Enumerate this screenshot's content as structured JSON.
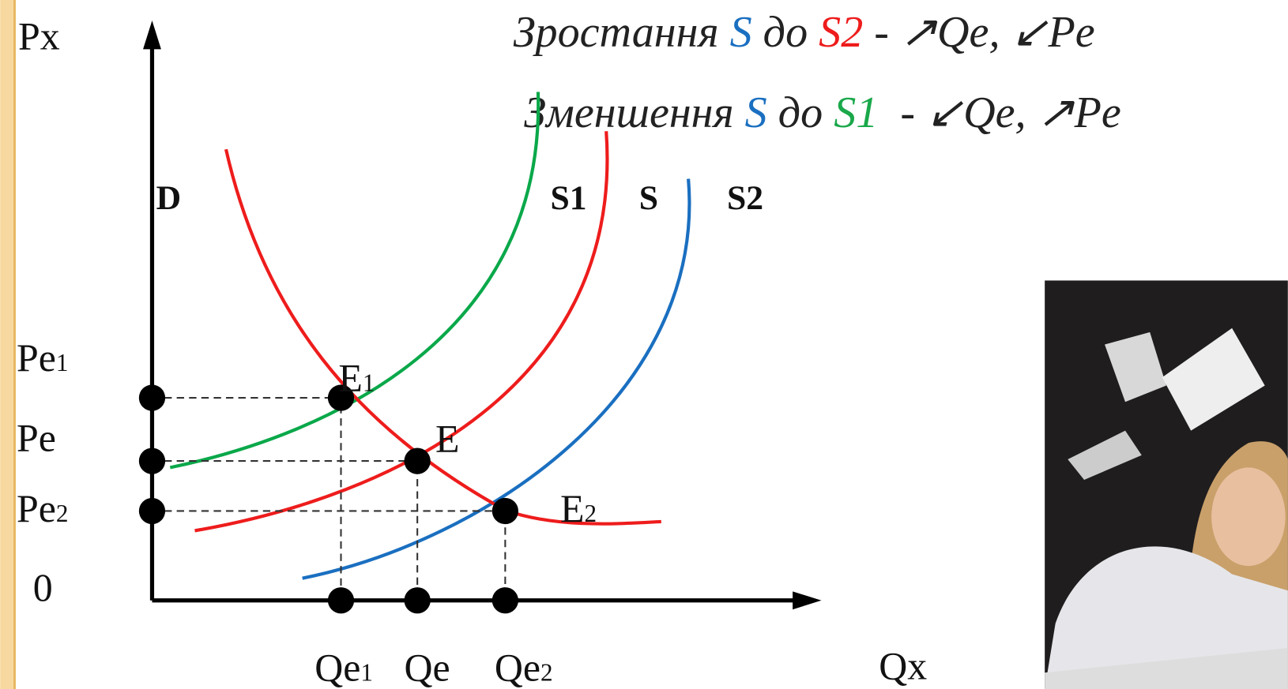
{
  "title_lines": [
    [
      "Зростання ",
      "S",
      " до ",
      "S2",
      " - ↗Qe, ↙Pe"
    ],
    [
      "Зменшення ",
      "S",
      " до ",
      "S1",
      "  - ↙Qe, ↗Pe"
    ]
  ],
  "axes": {
    "y_label": "Px",
    "x_label": "Qx",
    "origin": "0"
  },
  "curve_labels": [
    "D",
    "S1",
    "S",
    "S2"
  ],
  "price_labels": [
    {
      "main": "Pe",
      "sub": "1"
    },
    {
      "main": "Pe"
    },
    {
      "main": "Pe",
      "sub": "2"
    }
  ],
  "point_labels": [
    {
      "main": "E",
      "sub": "1"
    },
    {
      "main": "E"
    },
    {
      "main": "E",
      "sub": "2"
    }
  ],
  "quantity_labels": [
    {
      "main": "Qe",
      "sub": "1"
    },
    {
      "main": "Qe"
    },
    {
      "main": "Qe",
      "sub": "2"
    }
  ]
}
